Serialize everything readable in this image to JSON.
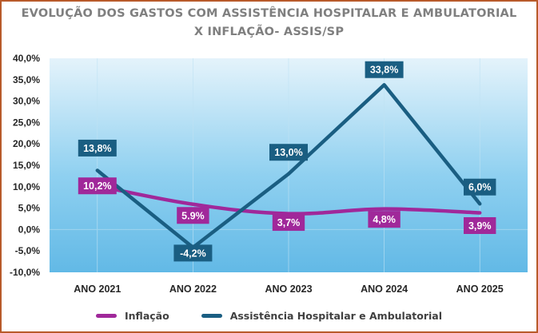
{
  "chart_data": {
    "type": "line",
    "title_lines": [
      "EVOLUÇÃO DOS GASTOS COM ASSISTÊNCIA HOSPITALAR E AMBULATORIAL",
      "X INFLAÇÃO- ASSIS/SP"
    ],
    "categories": [
      "ANO 2021",
      "ANO 2022",
      "ANO 2023",
      "ANO 2024",
      "ANO 2025"
    ],
    "y_ticks": [
      "40,0%",
      "35,0%",
      "30,0%",
      "25,0%",
      "20,0%",
      "15,0%",
      "10,0%",
      "5,0%",
      "0,0%",
      "-5,0%",
      "-10,0%"
    ],
    "ylim": [
      -10,
      40
    ],
    "series": [
      {
        "name": "Inflação",
        "color": "#a0289a",
        "values": [
          10.2,
          5.9,
          3.7,
          4.8,
          3.9
        ],
        "labels": [
          "10,2%",
          "5.9%",
          "3,7%",
          "4,8%",
          "3,9%"
        ]
      },
      {
        "name": "Assistência Hospitalar e Ambulatorial",
        "color": "#1a5e82",
        "values": [
          13.8,
          -4.2,
          13.0,
          33.8,
          6.0
        ],
        "labels": [
          "13,8%",
          "-4,2%",
          "13,0%",
          "33,8%",
          "6,0%"
        ]
      }
    ],
    "legend_position": "bottom",
    "grid": false
  }
}
